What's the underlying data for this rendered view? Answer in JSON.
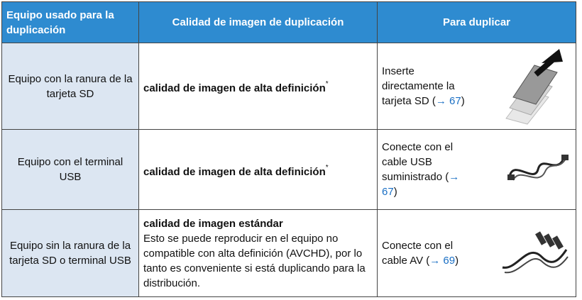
{
  "table": {
    "headers": [
      "Equipo usado para la duplicación",
      "Calidad de imagen de duplicación",
      "Para duplicar"
    ],
    "rows": [
      {
        "equipment": "Equipo con la ranura de la tarjeta SD",
        "quality": "calidad de imagen de alta definición",
        "note": "*",
        "action_before": "Inserte directamente la tarjeta SD (",
        "action_ref": "→ 67",
        "action_after": ")"
      },
      {
        "equipment": "Equipo con el terminal USB",
        "quality": "calidad de imagen de alta definición",
        "note": "*",
        "action_before": "Conecte con el cable USB suministrado (",
        "action_ref": "→ 67",
        "action_after": ")"
      },
      {
        "equipment": "Equipo sin la ranura de la tarjeta SD o terminal USB",
        "quality": "calidad de imagen estándar",
        "description": "Esto se puede reproducir en el equipo no compatible con alta definición (AVCHD), por lo tanto es conveniente si está duplicando para la distribución.",
        "action_before": "Conecte con el cable AV (",
        "action_ref": "→ 69",
        "action_after": ")"
      }
    ]
  }
}
